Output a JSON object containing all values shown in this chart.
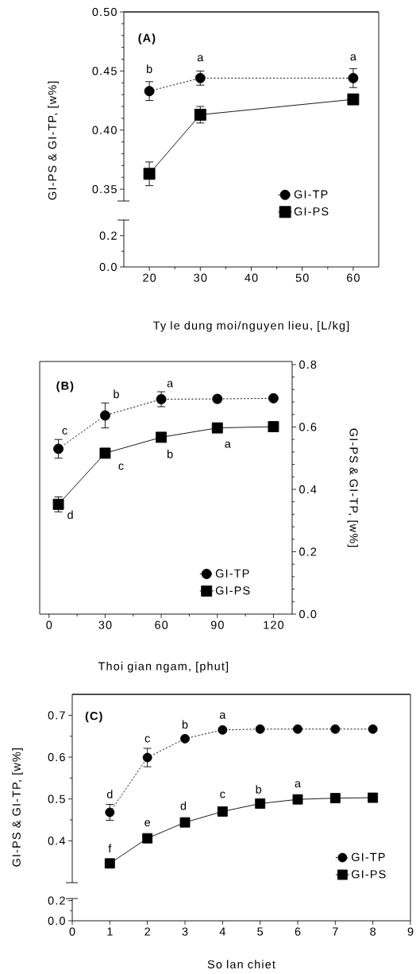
{
  "chart_data": [
    {
      "type": "line",
      "x": [
        20,
        30,
        60
      ],
      "xlim": [
        15,
        65
      ],
      "ylim": [
        0.34,
        0.5
      ],
      "yticks": [
        0.35,
        {
          "value": 0.4,
          "label": "0.40"
        },
        0.45,
        {
          "value": 0.5,
          "label": "0.50"
        }
      ],
      "ylabel": "GI-PS & GI-TP, [w%]",
      "legend": "bottom right",
      "tick_labels": "y",
      "series": [
        {
          "name": "GI-TP",
          "color": "#000000",
          "marker": "circle",
          "line_style": "dotted",
          "values": [
            0.433,
            0.444,
            0.444
          ],
          "errors": [
            0.008,
            0.006,
            0.008
          ]
        },
        {
          "name": "GI-PS",
          "color": "#000000",
          "marker": "square",
          "line_style": "solid",
          "values": [
            0.363,
            0.413,
            0.426
          ],
          "errors": [
            0.01,
            0.007,
            null
          ]
        }
      ],
      "annotations": [
        "(A)",
        {
          "text": "b",
          "x": 20,
          "y": 0.433
        },
        {
          "text": "a",
          "x": 30,
          "y": 0.444
        },
        {
          "text": "a",
          "x": 60,
          "y": 0.444
        }
      ]
    },
    {
      "type": "line",
      "xlim": [
        15,
        65
      ],
      "xticks": [
        20,
        30,
        40,
        50,
        60
      ],
      "ylim": [
        0,
        0.3
      ],
      "yticks": [
        {
          "value": 0,
          "label": "0.0"
        },
        0.2
      ],
      "xlabel": "Ty le dung moi/nguyen lieu, [L/kg]"
    },
    {
      "type": "line",
      "x": [
        5,
        30,
        60,
        90,
        120
      ],
      "xlim": [
        -5,
        130
      ],
      "xticks": [
        0,
        30,
        60,
        90,
        120
      ],
      "ylim": [
        0,
        0.81
      ],
      "yticks": [
        {
          "value": 0,
          "label": "0.0"
        },
        0.2,
        0.4,
        0.6,
        0.8
      ],
      "xlabel": "Thoi gian ngam, [phut]",
      "ylabel": "GI-PS & GI-TP, [w%]",
      "legend": "bottom right",
      "series": [
        {
          "name": "GI-TP",
          "color": "#000000",
          "marker": "circle",
          "line_style": "dotted",
          "values": [
            0.53,
            0.637,
            0.689,
            0.69,
            0.692
          ],
          "errors": [
            0.03,
            0.04,
            0.024,
            0.01,
            null
          ]
        },
        {
          "name": "GI-PS",
          "color": "#000000",
          "marker": "square",
          "line_style": "solid",
          "values": [
            0.352,
            0.516,
            0.567,
            0.597,
            0.601
          ],
          "errors": [
            0.024,
            0.015,
            null,
            null,
            null
          ]
        }
      ],
      "annotations": [
        "(B)",
        {
          "text": "c",
          "x": 5,
          "y": 0.53
        },
        {
          "text": "b",
          "x": 30,
          "y": 0.637
        },
        {
          "text": "a",
          "x": 60,
          "y": 0.689
        },
        {
          "text": "d",
          "x": 5,
          "y": 0.352
        },
        {
          "text": "c",
          "x": 30,
          "y": 0.516
        },
        {
          "text": "b",
          "x": 60,
          "y": 0.567
        },
        {
          "text": "a",
          "x": 90,
          "y": 0.597
        }
      ]
    },
    {
      "type": "line",
      "x": [
        1,
        2,
        3,
        4,
        5,
        6,
        7,
        8
      ],
      "xlim": [
        0,
        9
      ],
      "ylim": [
        0.3,
        0.75
      ],
      "yticks": [
        0.4,
        0.5,
        0.6,
        0.7
      ],
      "ylabel": "GI-PS & GI-TP, [w%]",
      "legend": "bottom right",
      "tick_labels": "y",
      "series": [
        {
          "name": "GI-TP",
          "color": "#000000",
          "marker": "circle",
          "line_style": "dotted",
          "values": [
            0.468,
            0.599,
            0.644,
            0.665,
            0.667,
            0.667,
            0.667,
            0.667
          ],
          "errors": [
            0.019,
            0.022,
            null,
            null,
            null,
            null,
            null,
            null
          ]
        },
        {
          "name": "GI-PS",
          "color": "#000000",
          "marker": "square",
          "line_style": "solid",
          "values": [
            0.346,
            0.406,
            0.444,
            0.47,
            0.489,
            0.499,
            0.502,
            0.503
          ],
          "errors": [
            null,
            null,
            null,
            null,
            null,
            null,
            null,
            null
          ]
        }
      ],
      "annotations": [
        "(C)",
        {
          "text": "d",
          "x": 1,
          "y": 0.468
        },
        {
          "text": "c",
          "x": 2,
          "y": 0.599
        },
        {
          "text": "b",
          "x": 3,
          "y": 0.644
        },
        {
          "text": "a",
          "x": 4,
          "y": 0.665
        },
        {
          "text": "f",
          "x": 1,
          "y": 0.346
        },
        {
          "text": "e",
          "x": 2,
          "y": 0.406
        },
        {
          "text": "d",
          "x": 3,
          "y": 0.444
        },
        {
          "text": "c",
          "x": 4,
          "y": 0.47
        },
        {
          "text": "b",
          "x": 5,
          "y": 0.489
        },
        {
          "text": "a",
          "x": 6,
          "y": 0.499
        }
      ]
    },
    {
      "type": "line",
      "xlim": [
        0,
        9
      ],
      "xticks": [
        0,
        1,
        2,
        3,
        4,
        5,
        6,
        7,
        8,
        9
      ],
      "ylim": [
        0,
        0.22
      ],
      "yticks": [
        {
          "value": 0,
          "label": "0.0"
        },
        0.2
      ],
      "xlabel": "So lan chiet"
    }
  ]
}
